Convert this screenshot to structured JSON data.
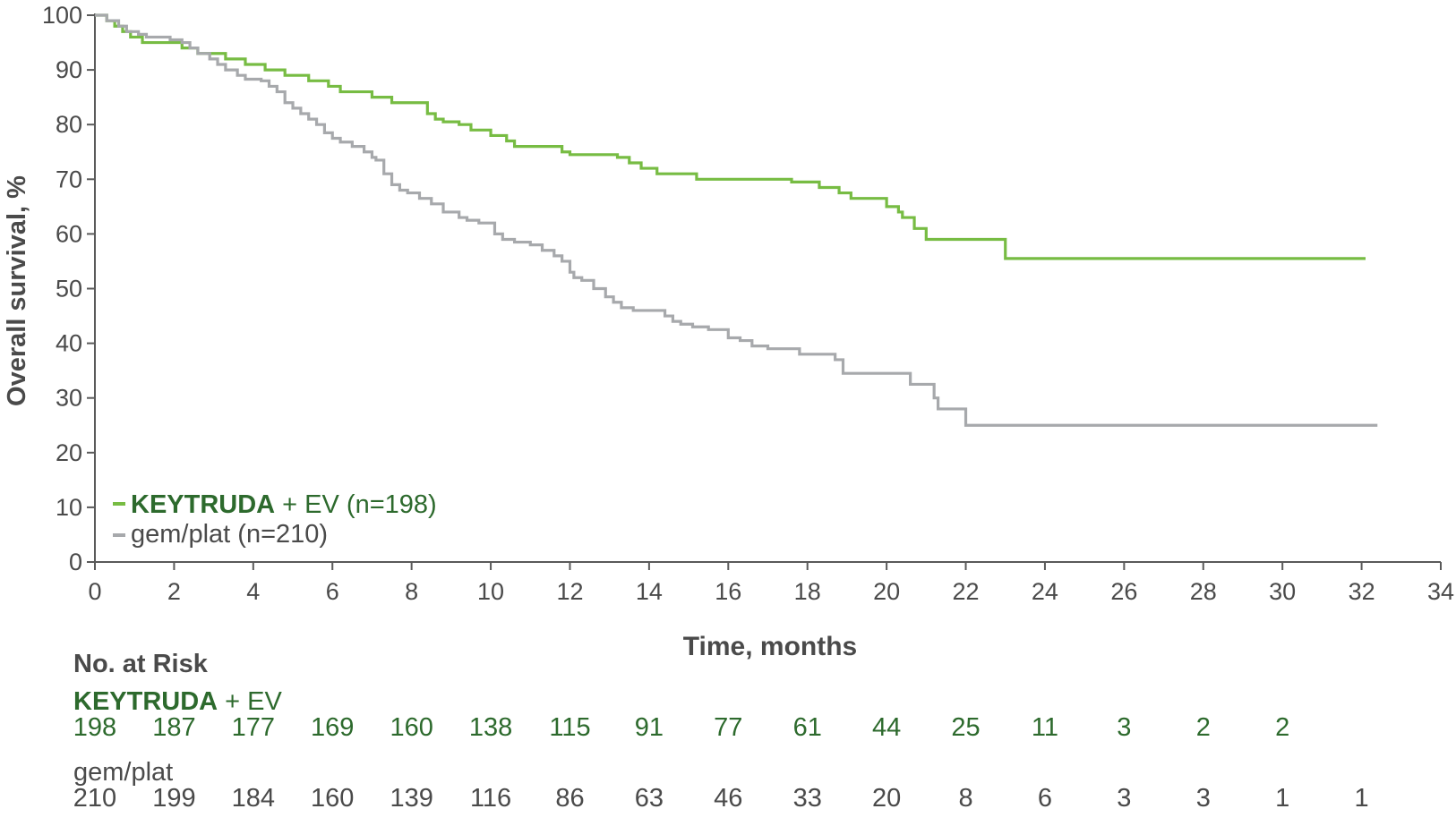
{
  "chart_data": {
    "type": "line",
    "title": "",
    "xlabel": "Time, months",
    "ylabel": "Overall survival, %",
    "xlim": [
      0,
      34
    ],
    "ylim": [
      0,
      100
    ],
    "xticks": [
      0,
      2,
      4,
      6,
      8,
      10,
      12,
      14,
      16,
      18,
      20,
      22,
      24,
      26,
      28,
      30,
      32,
      34
    ],
    "yticks": [
      0,
      10,
      20,
      30,
      40,
      50,
      60,
      70,
      80,
      90,
      100
    ],
    "grid": false,
    "legend_position": "bottom-left",
    "series": [
      {
        "name": "KEYTRUDA + EV (n=198)",
        "name_bold": "KEYTRUDA",
        "name_rest": " + EV (n=198)",
        "color": "#77bc43",
        "step": true,
        "x": [
          0,
          0.3,
          0.5,
          0.7,
          0.9,
          1.2,
          2.2,
          2.6,
          3.3,
          3.8,
          4.1,
          4.3,
          4.8,
          5.0,
          5.4,
          5.9,
          6.2,
          6.3,
          6.5,
          7.0,
          7.3,
          7.5,
          7.9,
          8.4,
          8.6,
          8.8,
          9.2,
          9.5,
          10.0,
          10.4,
          10.6,
          11.6,
          11.8,
          12.0,
          13.2,
          13.5,
          13.8,
          14.2,
          15.2,
          17.6,
          18.3,
          18.5,
          18.8,
          19.1,
          20.0,
          20.3,
          20.4,
          20.7,
          21.0,
          23.0,
          32.1
        ],
        "y": [
          100,
          99,
          98,
          97,
          96,
          95,
          94,
          93,
          92,
          91,
          91,
          90,
          89,
          89,
          88,
          87,
          86,
          86,
          86,
          85,
          85,
          84,
          84,
          82,
          81,
          80.5,
          80,
          79,
          78,
          77,
          76,
          76,
          75,
          74.5,
          74,
          73,
          72,
          71,
          70,
          69.5,
          68.5,
          68.5,
          67.5,
          66.5,
          65,
          64,
          63,
          61,
          59,
          55.5,
          55.5
        ]
      },
      {
        "name": "gem/plat (n=210)",
        "color": "#a7a9ac",
        "step": true,
        "x": [
          0,
          0.3,
          0.6,
          0.8,
          1.1,
          1.3,
          1.9,
          2.2,
          2.4,
          2.6,
          2.9,
          3.1,
          3.3,
          3.6,
          3.8,
          4.2,
          4.4,
          4.6,
          4.8,
          5.0,
          5.2,
          5.4,
          5.6,
          5.8,
          6.0,
          6.2,
          6.5,
          6.8,
          7.0,
          7.1,
          7.3,
          7.5,
          7.7,
          7.9,
          8.2,
          8.5,
          8.8,
          9.2,
          9.4,
          9.7,
          10.1,
          10.3,
          10.6,
          11.0,
          11.3,
          11.6,
          11.8,
          12.0,
          12.1,
          12.3,
          12.6,
          12.9,
          13.1,
          13.3,
          13.6,
          14.4,
          14.6,
          14.8,
          15.1,
          15.5,
          16.0,
          16.3,
          16.6,
          17.0,
          17.8,
          18.7,
          18.9,
          20.6,
          21.2,
          21.3,
          22.0,
          32.4
        ],
        "y": [
          100,
          99,
          98,
          97,
          96.5,
          96,
          95.5,
          95,
          94,
          93,
          92,
          91,
          90,
          89,
          88.3,
          88,
          87,
          86,
          84,
          83,
          82,
          81,
          80,
          78.5,
          77.5,
          76.8,
          76,
          75,
          74,
          73.5,
          71,
          69,
          68,
          67.5,
          66.5,
          65.5,
          64,
          63,
          62.5,
          62,
          60,
          59,
          58.5,
          58,
          57,
          56,
          55,
          53,
          52,
          51.5,
          50,
          48.5,
          47.5,
          46.5,
          46,
          45,
          44,
          43.5,
          43,
          42.5,
          41,
          40.5,
          39.5,
          39,
          38,
          37,
          34.5,
          32.5,
          30,
          28,
          25,
          25
        ]
      }
    ]
  },
  "risk_table": {
    "title": "No. at Risk",
    "times": [
      0,
      2,
      4,
      6,
      8,
      10,
      12,
      14,
      16,
      18,
      20,
      22,
      24,
      26,
      28,
      30,
      32
    ],
    "rows": [
      {
        "label_bold": "KEYTRUDA",
        "label_rest": " + EV",
        "color": "#2d6a2d",
        "values": [
          "198",
          "187",
          "177",
          "169",
          "160",
          "138",
          "115",
          "91",
          "77",
          "61",
          "44",
          "25",
          "11",
          "3",
          "2",
          "2",
          ""
        ]
      },
      {
        "label": "gem/plat",
        "color": "#4a4a4a",
        "values": [
          "210",
          "199",
          "184",
          "160",
          "139",
          "116",
          "86",
          "63",
          "46",
          "33",
          "20",
          "8",
          "6",
          "3",
          "3",
          "1",
          "1"
        ]
      }
    ]
  }
}
